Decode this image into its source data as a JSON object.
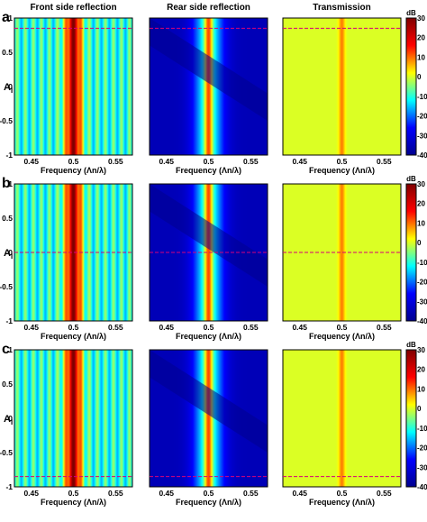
{
  "column_titles": [
    "Front side reflection",
    "Rear side reflection",
    "Transmission"
  ],
  "row_labels": [
    "a",
    "b",
    "c"
  ],
  "xlabel": "Frequency (Λn/λ)",
  "ylabel_main": "A",
  "ylabel_sub": "I",
  "colorbar_unit": "dB",
  "colormap": [
    "#00008f",
    "#0000ff",
    "#00ffff",
    "#ffff00",
    "#ff0000",
    "#800000"
  ],
  "marker_color": "#d6007a",
  "chart_data": {
    "type": "heatmap",
    "xlim": [
      0.43,
      0.57
    ],
    "ylim": [
      -1,
      1
    ],
    "x_ticks": [
      0.45,
      0.5,
      0.55
    ],
    "x_tick_labels": [
      "0.45",
      "0.5",
      "0.55"
    ],
    "y_ticks": [
      1,
      0.5,
      0,
      -0.5,
      -1
    ],
    "y_tick_labels": [
      "1",
      "0.5",
      "0",
      "-0.5",
      "-1"
    ],
    "zlim": [
      -40,
      30
    ],
    "colorbar_ticks": [
      30,
      20,
      10,
      0,
      -10,
      -20,
      -30,
      -40
    ],
    "colorbar_tick_labels": [
      "30",
      "20",
      "10",
      "0",
      "-10",
      "-20",
      "-30",
      "-40"
    ],
    "rows": [
      {
        "label": "a",
        "marker_y": 0.85
      },
      {
        "label": "b",
        "marker_y": 0.0
      },
      {
        "label": "c",
        "marker_y": -0.85
      }
    ],
    "series": [
      {
        "name": "Front side reflection",
        "center_x": 0.5,
        "peak_db": 25,
        "background_db": -10
      },
      {
        "name": "Rear side reflection",
        "center_x": 0.5,
        "peak_db": 12,
        "background_db": -35
      },
      {
        "name": "Transmission",
        "center_x": 0.5,
        "peak_db": 15,
        "background_db": 0
      }
    ]
  }
}
